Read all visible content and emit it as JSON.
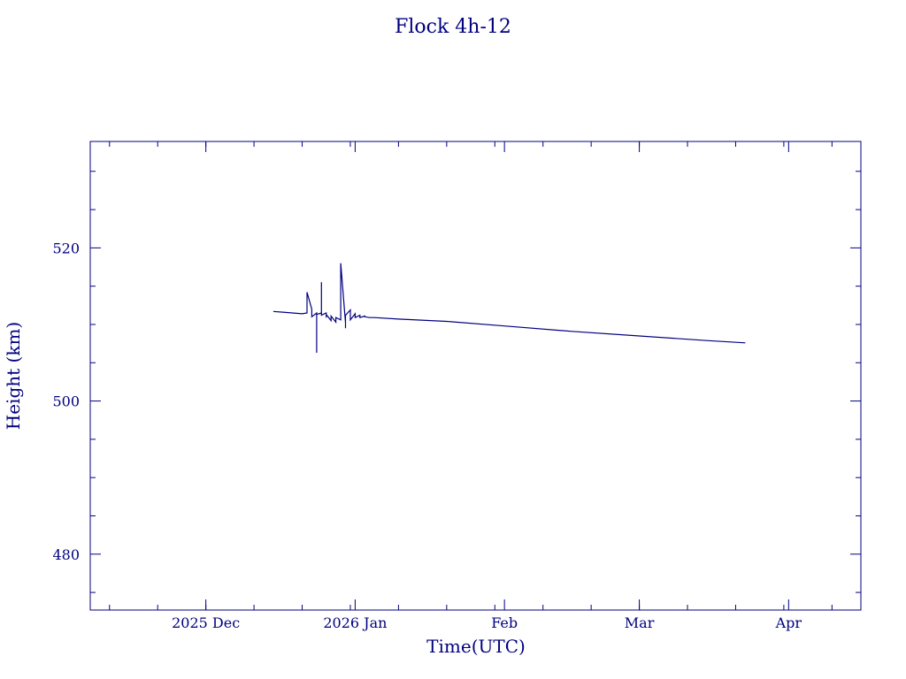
{
  "chart_data": {
    "type": "line",
    "title": "Flock 4h-12",
    "xlabel": "Time(UTC)",
    "ylabel": "Height (km)",
    "color": "#000080",
    "grid": false,
    "legend": "none",
    "xlim": [
      "2025-11-07",
      "2026-04-16"
    ],
    "ylim": [
      472.7,
      533.9
    ],
    "x_ticks": [
      {
        "date": "2025-12-01",
        "label": "2025 Dec"
      },
      {
        "date": "2026-01-01",
        "label": "2026 Jan"
      },
      {
        "date": "2026-02-01",
        "label": "Feb"
      },
      {
        "date": "2026-03-01",
        "label": "Mar"
      },
      {
        "date": "2026-04-01",
        "label": "Apr"
      }
    ],
    "y_ticks": [
      480,
      500,
      520
    ],
    "series": [
      {
        "x": [
          "2025-12-15",
          "2025-12-17",
          "2025-12-19",
          "2025-12-21",
          "2025-12-22",
          "2025-12-22",
          "2025-12-23",
          "2025-12-23",
          "2025-12-23",
          "2025-12-24",
          "2025-12-24",
          "2025-12-24",
          "2025-12-25",
          "2025-12-25",
          "2025-12-25",
          "2025-12-26",
          "2025-12-26",
          "2025-12-26",
          "2025-12-27",
          "2025-12-27",
          "2025-12-28",
          "2025-12-28",
          "2025-12-29",
          "2025-12-29",
          "2025-12-30",
          "2025-12-30",
          "2025-12-30",
          "2025-12-31",
          "2025-12-31",
          "2026-01-01",
          "2026-01-01",
          "2026-01-02",
          "2026-01-02",
          "2026-01-03",
          "2026-01-03",
          "2026-01-04",
          "2026-01-05",
          "2026-01-10",
          "2026-01-20",
          "2026-02-01",
          "2026-02-15",
          "2026-03-01",
          "2026-03-15",
          "2026-03-23"
        ],
        "y": [
          511.7,
          511.6,
          511.5,
          511.4,
          511.5,
          514.2,
          512.0,
          511.4,
          511.0,
          511.5,
          506.3,
          511.3,
          511.5,
          515.5,
          511.2,
          511.5,
          510.9,
          511.3,
          510.5,
          511.1,
          510.3,
          510.9,
          510.6,
          518.0,
          510.2,
          509.5,
          511.2,
          511.9,
          510.6,
          511.4,
          510.9,
          511.2,
          510.9,
          511.1,
          511.0,
          510.9,
          510.9,
          510.7,
          510.4,
          509.8,
          509.1,
          508.5,
          507.9,
          507.6
        ]
      }
    ]
  }
}
